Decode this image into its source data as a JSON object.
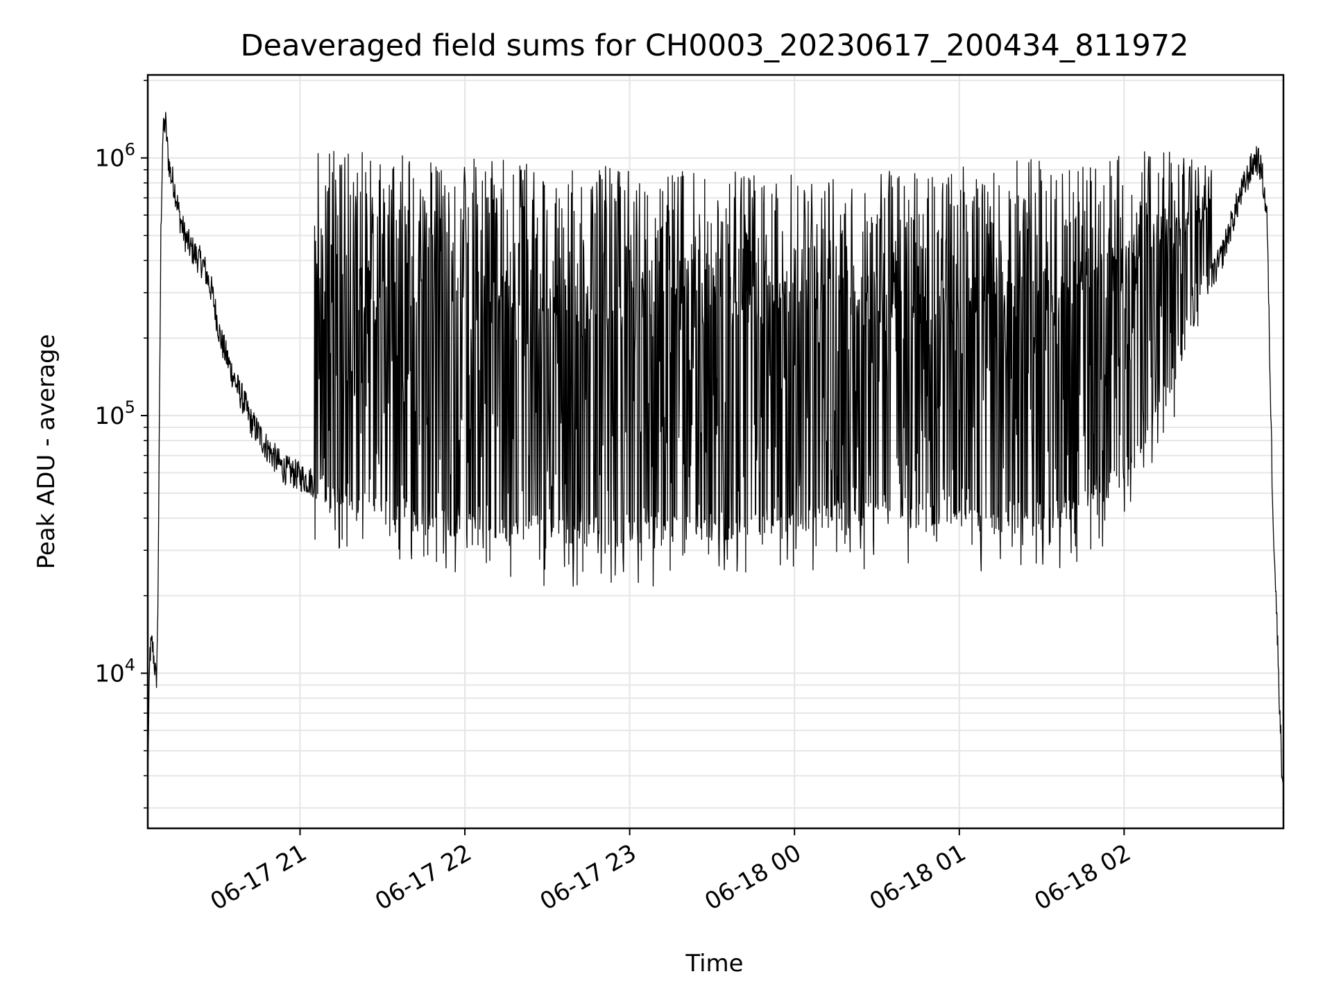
{
  "chart_data": {
    "type": "line",
    "title": "Deaveraged field sums for CH0003_20230617_200434_811972",
    "xlabel": "Time",
    "ylabel": "Peak ADU - average",
    "yscale": "log",
    "xlim": [
      "2023-06-17T20:04:34",
      "2023-06-18T02:58:00"
    ],
    "ylim": [
      2500,
      2100000
    ],
    "grid": true,
    "line_color": "#000000",
    "grid_color": "#e6e6e6",
    "x_ticks": [
      {
        "value": "2023-06-17T21:00:00",
        "label": "06-17 21"
      },
      {
        "value": "2023-06-17T22:00:00",
        "label": "06-17 22"
      },
      {
        "value": "2023-06-17T23:00:00",
        "label": "06-17 23"
      },
      {
        "value": "2023-06-18T00:00:00",
        "label": "06-18 00"
      },
      {
        "value": "2023-06-18T01:00:00",
        "label": "06-18 01"
      },
      {
        "value": "2023-06-18T02:00:00",
        "label": "06-18 02"
      }
    ],
    "y_ticks": [
      {
        "value": 10000,
        "base": "10",
        "exp": "4"
      },
      {
        "value": 100000,
        "base": "10",
        "exp": "5"
      },
      {
        "value": 1000000,
        "base": "10",
        "exp": "6"
      }
    ],
    "series": [
      {
        "x": [
          "2023-06-17T20:04:34",
          "2023-06-17T20:05:20",
          "2023-06-17T20:06:10",
          "2023-06-17T20:07:00",
          "2023-06-17T20:07:40",
          "2023-06-17T20:08:10",
          "2023-06-17T20:08:40",
          "2023-06-17T20:09:20",
          "2023-06-17T20:10:00",
          "2023-06-17T20:11:00",
          "2023-06-17T20:12:00",
          "2023-06-17T20:13:00",
          "2023-06-17T20:14:00",
          "2023-06-17T20:15:00",
          "2023-06-17T20:16:00",
          "2023-06-17T20:18:00",
          "2023-06-17T20:20:00",
          "2023-06-17T20:22:00",
          "2023-06-17T20:25:00",
          "2023-06-17T20:28:00",
          "2023-06-17T20:31:00",
          "2023-06-17T20:34:00",
          "2023-06-17T20:37:00",
          "2023-06-17T20:40:00",
          "2023-06-17T20:42:00",
          "2023-06-17T20:45:00",
          "2023-06-17T20:48:00",
          "2023-06-17T20:51:00",
          "2023-06-17T20:54:00",
          "2023-06-17T20:57:00",
          "2023-06-17T21:00:00",
          "2023-06-17T21:05:00",
          "2023-06-17T21:10:00",
          "2023-06-17T21:15:00",
          "2023-06-17T21:20:00",
          "2023-06-17T21:25:00",
          "2023-06-17T21:35:00",
          "2023-06-17T21:45:00",
          "2023-06-17T22:00:00",
          "2023-06-17T22:30:00",
          "2023-06-17T23:00:00",
          "2023-06-17T23:30:00",
          "2023-06-18T00:00:00",
          "2023-06-18T00:30:00",
          "2023-06-18T01:00:00",
          "2023-06-18T01:30:00",
          "2023-06-18T01:45:00",
          "2023-06-18T02:00:00",
          "2023-06-18T02:15:00",
          "2023-06-18T02:25:00",
          "2023-06-18T02:35:00",
          "2023-06-18T02:42:00",
          "2023-06-18T02:46:00",
          "2023-06-18T02:48:00",
          "2023-06-18T02:50:00",
          "2023-06-18T02:52:00",
          "2023-06-18T02:54:00",
          "2023-06-18T02:56:00",
          "2023-06-18T02:57:30"
        ],
        "y": [
          4000,
          12000,
          13000,
          11000,
          9000,
          15000,
          60000,
          500000,
          1200000,
          1400000,
          1000000,
          850000,
          800000,
          700000,
          600000,
          500000,
          450000,
          420000,
          380000,
          300000,
          200000,
          160000,
          130000,
          110000,
          95000,
          85000,
          75000,
          68000,
          62000,
          60000,
          58000,
          55000,
          50000,
          48000,
          47000,
          45000,
          42000,
          40000,
          38000,
          36000,
          35000,
          37000,
          40000,
          42000,
          41000,
          40000,
          45000,
          60000,
          120000,
          250000,
          400000,
          700000,
          900000,
          1000000,
          900000,
          600000,
          50000,
          12000,
          4000
        ],
        "peaks_x": [
          "2023-06-17T21:10:00",
          "2023-06-17T21:30:00",
          "2023-06-17T21:50:00",
          "2023-06-17T22:10:00",
          "2023-06-17T22:30:00",
          "2023-06-17T22:50:00",
          "2023-06-17T23:10:00",
          "2023-06-17T23:30:00",
          "2023-06-17T23:50:00",
          "2023-06-18T00:10:00",
          "2023-06-18T00:30:00",
          "2023-06-18T00:50:00",
          "2023-06-18T01:10:00",
          "2023-06-18T01:30:00",
          "2023-06-18T01:50:00",
          "2023-06-18T02:10:00",
          "2023-06-18T02:30:00"
        ],
        "peaks_y": [
          1100000,
          1100000,
          1000000,
          1000000,
          950000,
          950000,
          900000,
          900000,
          900000,
          850000,
          900000,
          900000,
          950000,
          1000000,
          1000000,
          1100000,
          1000000
        ]
      }
    ]
  }
}
